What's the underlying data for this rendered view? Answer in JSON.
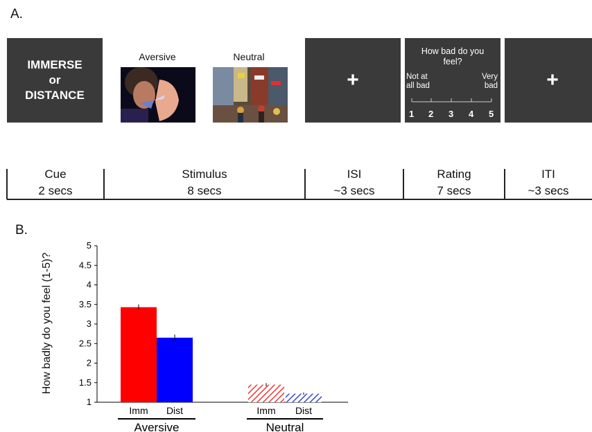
{
  "panelA": {
    "letter": "A.",
    "cue": {
      "line1": "IMMERSE",
      "line2": "or",
      "line3": "DISTANCE"
    },
    "stimuli": [
      {
        "label": "Aversive",
        "icon": "aversive-photo"
      },
      {
        "label": "Neutral",
        "icon": "city-street-photo"
      }
    ],
    "fixation": "+",
    "rating": {
      "question": "How bad do you feel?",
      "low_anchor_1": "Not at",
      "low_anchor_2": "all bad",
      "high_anchor_1": "Very",
      "high_anchor_2": "bad",
      "scale": [
        "1",
        "2",
        "3",
        "4",
        "5"
      ]
    },
    "timeline": [
      {
        "name": "Cue",
        "duration": "2 secs"
      },
      {
        "name": "Stimulus",
        "duration": "8 secs"
      },
      {
        "name": "ISI",
        "duration": "~3 secs"
      },
      {
        "name": "Rating",
        "duration": "7 secs"
      },
      {
        "name": "ITI",
        "duration": "~3 secs"
      }
    ]
  },
  "panelB": {
    "letter": "B.",
    "chart_data": {
      "type": "bar",
      "ylabel": "How badly do you feel (1-5)?",
      "ylim": [
        1,
        5
      ],
      "yticks": [
        "1",
        "1.5",
        "2",
        "2.5",
        "3",
        "3.5",
        "4",
        "4.5",
        "5"
      ],
      "groups": [
        "Aversive",
        "Neutral"
      ],
      "bar_labels": [
        "Imm",
        "Dist"
      ],
      "series": [
        {
          "group": "Aversive",
          "label": "Imm",
          "value": 3.43,
          "error": 0.07,
          "color": "#ff0000",
          "pattern": "solid"
        },
        {
          "group": "Aversive",
          "label": "Dist",
          "value": 2.65,
          "error": 0.08,
          "color": "#0000ff",
          "pattern": "solid"
        },
        {
          "group": "Neutral",
          "label": "Imm",
          "value": 1.45,
          "error": 0.04,
          "color": "#ff0000",
          "pattern": "hatched"
        },
        {
          "group": "Neutral",
          "label": "Dist",
          "value": 1.22,
          "error": 0.03,
          "color": "#0000ff",
          "pattern": "hatched"
        }
      ]
    }
  }
}
